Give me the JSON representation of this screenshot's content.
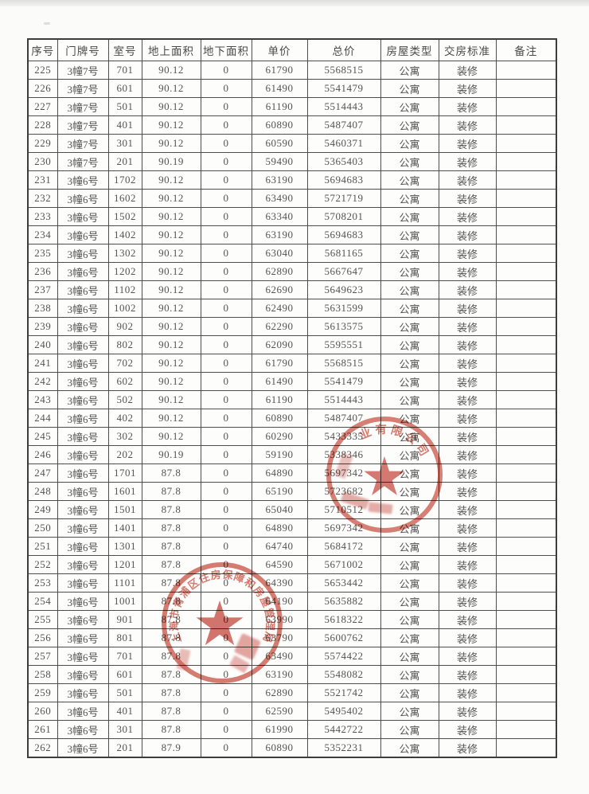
{
  "document": {
    "kind": "scanned-price-list-page",
    "table": {
      "columns": [
        {
          "key": "seq",
          "label": "序号"
        },
        {
          "key": "door",
          "label": "门牌号"
        },
        {
          "key": "room",
          "label": "室号"
        },
        {
          "key": "area_above",
          "label": "地上面积"
        },
        {
          "key": "area_below",
          "label": "地下面积"
        },
        {
          "key": "unit_price",
          "label": "单价"
        },
        {
          "key": "total_price",
          "label": "总价"
        },
        {
          "key": "type",
          "label": "房屋类型"
        },
        {
          "key": "standard",
          "label": "交房标准"
        },
        {
          "key": "note",
          "label": "备注"
        }
      ],
      "rows": [
        [
          "225",
          "3幢7号",
          "701",
          "90.12",
          "0",
          "61790",
          "5568515",
          "公寓",
          "装修",
          ""
        ],
        [
          "226",
          "3幢7号",
          "601",
          "90.12",
          "0",
          "61490",
          "5541479",
          "公寓",
          "装修",
          ""
        ],
        [
          "227",
          "3幢7号",
          "501",
          "90.12",
          "0",
          "61190",
          "5514443",
          "公寓",
          "装修",
          ""
        ],
        [
          "228",
          "3幢7号",
          "401",
          "90.12",
          "0",
          "60890",
          "5487407",
          "公寓",
          "装修",
          ""
        ],
        [
          "229",
          "3幢7号",
          "301",
          "90.12",
          "0",
          "60590",
          "5460371",
          "公寓",
          "装修",
          ""
        ],
        [
          "230",
          "3幢7号",
          "201",
          "90.19",
          "0",
          "59490",
          "5365403",
          "公寓",
          "装修",
          ""
        ],
        [
          "231",
          "3幢6号",
          "1702",
          "90.12",
          "0",
          "63190",
          "5694683",
          "公寓",
          "装修",
          ""
        ],
        [
          "232",
          "3幢6号",
          "1602",
          "90.12",
          "0",
          "63490",
          "5721719",
          "公寓",
          "装修",
          ""
        ],
        [
          "233",
          "3幢6号",
          "1502",
          "90.12",
          "0",
          "63340",
          "5708201",
          "公寓",
          "装修",
          ""
        ],
        [
          "234",
          "3幢6号",
          "1402",
          "90.12",
          "0",
          "63190",
          "5694683",
          "公寓",
          "装修",
          ""
        ],
        [
          "235",
          "3幢6号",
          "1302",
          "90.12",
          "0",
          "63040",
          "5681165",
          "公寓",
          "装修",
          ""
        ],
        [
          "236",
          "3幢6号",
          "1202",
          "90.12",
          "0",
          "62890",
          "5667647",
          "公寓",
          "装修",
          ""
        ],
        [
          "237",
          "3幢6号",
          "1102",
          "90.12",
          "0",
          "62690",
          "5649623",
          "公寓",
          "装修",
          ""
        ],
        [
          "238",
          "3幢6号",
          "1002",
          "90.12",
          "0",
          "62490",
          "5631599",
          "公寓",
          "装修",
          ""
        ],
        [
          "239",
          "3幢6号",
          "902",
          "90.12",
          "0",
          "62290",
          "5613575",
          "公寓",
          "装修",
          ""
        ],
        [
          "240",
          "3幢6号",
          "802",
          "90.12",
          "0",
          "62090",
          "5595551",
          "公寓",
          "装修",
          ""
        ],
        [
          "241",
          "3幢6号",
          "702",
          "90.12",
          "0",
          "61790",
          "5568515",
          "公寓",
          "装修",
          ""
        ],
        [
          "242",
          "3幢6号",
          "602",
          "90.12",
          "0",
          "61490",
          "5541479",
          "公寓",
          "装修",
          ""
        ],
        [
          "243",
          "3幢6号",
          "502",
          "90.12",
          "0",
          "61190",
          "5514443",
          "公寓",
          "装修",
          ""
        ],
        [
          "244",
          "3幢6号",
          "402",
          "90.12",
          "0",
          "60890",
          "5487407",
          "公寓",
          "装修",
          ""
        ],
        [
          "245",
          "3幢6号",
          "302",
          "90.12",
          "0",
          "60290",
          "5433335",
          "公寓",
          "装修",
          ""
        ],
        [
          "246",
          "3幢6号",
          "202",
          "90.19",
          "0",
          "59190",
          "5338346",
          "公寓",
          "装修",
          ""
        ],
        [
          "247",
          "3幢6号",
          "1701",
          "87.8",
          "0",
          "64890",
          "5697342",
          "公寓",
          "装修",
          ""
        ],
        [
          "248",
          "3幢6号",
          "1601",
          "87.8",
          "0",
          "65190",
          "5723682",
          "公寓",
          "装修",
          ""
        ],
        [
          "249",
          "3幢6号",
          "1501",
          "87.8",
          "0",
          "65040",
          "5710512",
          "公寓",
          "装修",
          ""
        ],
        [
          "250",
          "3幢6号",
          "1401",
          "87.8",
          "0",
          "64890",
          "5697342",
          "公寓",
          "装修",
          ""
        ],
        [
          "251",
          "3幢6号",
          "1301",
          "87.8",
          "0",
          "64740",
          "5684172",
          "公寓",
          "装修",
          ""
        ],
        [
          "252",
          "3幢6号",
          "1201",
          "87.8",
          "0",
          "64590",
          "5671002",
          "公寓",
          "装修",
          ""
        ],
        [
          "253",
          "3幢6号",
          "1101",
          "87.8",
          "0",
          "64390",
          "5653442",
          "公寓",
          "装修",
          ""
        ],
        [
          "254",
          "3幢6号",
          "1001",
          "87.8",
          "0",
          "64190",
          "5635882",
          "公寓",
          "装修",
          ""
        ],
        [
          "255",
          "3幢6号",
          "901",
          "87.8",
          "0",
          "63990",
          "5618322",
          "公寓",
          "装修",
          ""
        ],
        [
          "256",
          "3幢6号",
          "801",
          "87.8",
          "0",
          "63790",
          "5600762",
          "公寓",
          "装修",
          ""
        ],
        [
          "257",
          "3幢6号",
          "701",
          "87.8",
          "0",
          "63490",
          "5574422",
          "公寓",
          "装修",
          ""
        ],
        [
          "258",
          "3幢6号",
          "601",
          "87.8",
          "0",
          "63190",
          "5548082",
          "公寓",
          "装修",
          ""
        ],
        [
          "259",
          "3幢6号",
          "501",
          "87.8",
          "0",
          "62890",
          "5521742",
          "公寓",
          "装修",
          ""
        ],
        [
          "260",
          "3幢6号",
          "401",
          "87.8",
          "0",
          "62590",
          "5495402",
          "公寓",
          "装修",
          ""
        ],
        [
          "261",
          "3幢6号",
          "301",
          "87.8",
          "0",
          "61990",
          "5442722",
          "公寓",
          "装修",
          ""
        ],
        [
          "262",
          "3幢6号",
          "201",
          "87.9",
          "0",
          "60890",
          "5352231",
          "公寓",
          "装修",
          ""
        ]
      ]
    },
    "stamps": [
      {
        "name": "developer-company-seal",
        "arc_text": "业有限公司",
        "shape": "circle-with-star",
        "color": "#c64536"
      },
      {
        "name": "housing-authority-seal",
        "arc_text": "上海市青浦区住房保障和房屋管理局",
        "shape": "circle-with-star",
        "color": "#c64536"
      }
    ]
  }
}
